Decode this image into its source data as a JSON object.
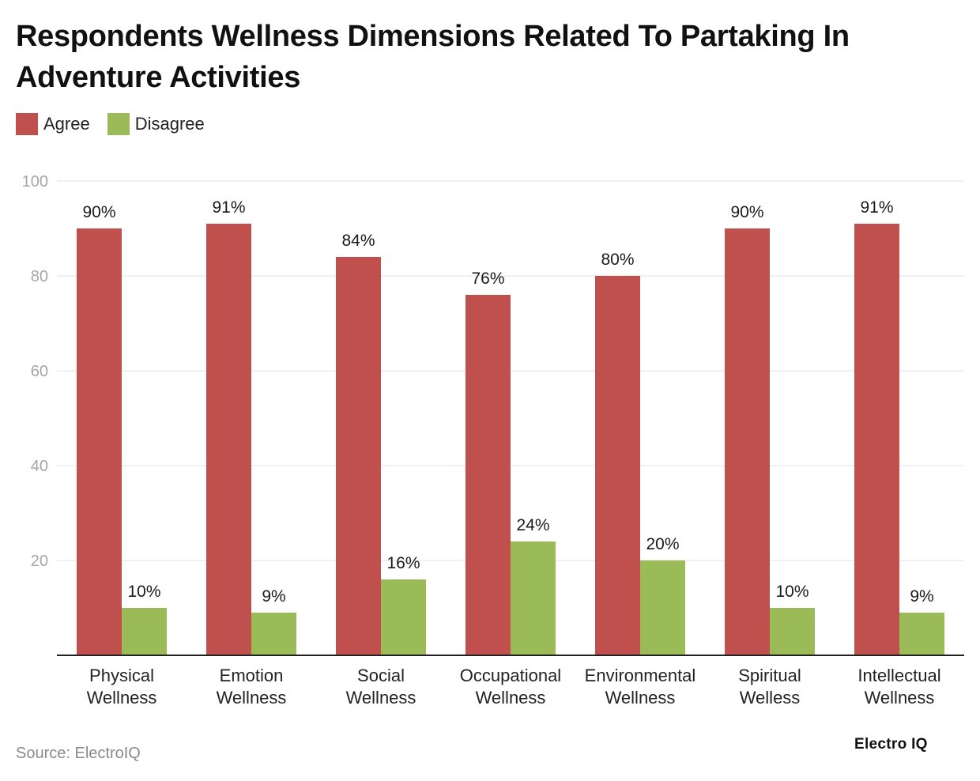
{
  "chart_data": {
    "type": "bar",
    "title": "Respondents Wellness Dimensions Related To Partaking In Adventure Activities",
    "categories": [
      [
        "Physical",
        "Wellness"
      ],
      [
        "Emotion",
        "Wellness"
      ],
      [
        "Social",
        "Wellness"
      ],
      [
        "Occupational",
        "Wellness"
      ],
      [
        "Environmental",
        "Wellness"
      ],
      [
        "Spiritual",
        "Welless"
      ],
      [
        "Intellectual",
        "Wellness"
      ]
    ],
    "series": [
      {
        "name": "Agree",
        "color": "#c0504d",
        "values": [
          90,
          91,
          84,
          76,
          80,
          90,
          91
        ],
        "labels": [
          "90%",
          "91%",
          "84%",
          "76%",
          "80%",
          "90%",
          "91%"
        ]
      },
      {
        "name": "Disagree",
        "color": "#9bbb59",
        "values": [
          10,
          9,
          16,
          24,
          20,
          10,
          9
        ],
        "labels": [
          "10%",
          "9%",
          "16%",
          "24%",
          "20%",
          "10%",
          "9%"
        ]
      }
    ],
    "ylim": [
      0,
      100
    ],
    "yticks": [
      20,
      40,
      60,
      80,
      100
    ],
    "xlabel": "",
    "ylabel": "",
    "grid": true,
    "legend": "top-left"
  },
  "footer": {
    "source": "Source: ElectroIQ",
    "brand": "Electro IQ"
  }
}
